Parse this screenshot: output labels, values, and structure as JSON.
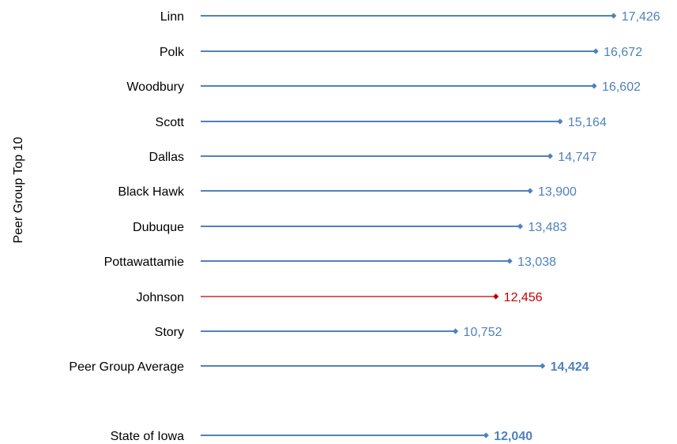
{
  "chart_data": {
    "type": "bar",
    "orientation": "horizontal",
    "style": "lollipop",
    "ylabel": "Peer Group Top 10",
    "grid": false,
    "legend": "none",
    "colors": {
      "default": "#4f81bd",
      "highlight": "#c00000"
    },
    "rows": [
      {
        "label": "Linn",
        "value": 17426,
        "value_label": "17,426",
        "highlight": false,
        "bold": false
      },
      {
        "label": "Polk",
        "value": 16672,
        "value_label": "16,672",
        "highlight": false,
        "bold": false
      },
      {
        "label": "Woodbury",
        "value": 16602,
        "value_label": "16,602",
        "highlight": false,
        "bold": false
      },
      {
        "label": "Scott",
        "value": 15164,
        "value_label": "15,164",
        "highlight": false,
        "bold": false
      },
      {
        "label": "Dallas",
        "value": 14747,
        "value_label": "14,747",
        "highlight": false,
        "bold": false
      },
      {
        "label": "Black Hawk",
        "value": 13900,
        "value_label": "13,900",
        "highlight": false,
        "bold": false
      },
      {
        "label": "Dubuque",
        "value": 13483,
        "value_label": "13,483",
        "highlight": false,
        "bold": false
      },
      {
        "label": "Pottawattamie",
        "value": 13038,
        "value_label": "13,038",
        "highlight": false,
        "bold": false
      },
      {
        "label": "Johnson",
        "value": 12456,
        "value_label": "12,456",
        "highlight": true,
        "bold": false
      },
      {
        "label": "Story",
        "value": 10752,
        "value_label": "10,752",
        "highlight": false,
        "bold": false
      },
      {
        "label": "Peer Group Average",
        "value": 14424,
        "value_label": "14,424",
        "highlight": false,
        "bold": true
      },
      {
        "label": "State of Iowa",
        "value": 12040,
        "value_label": "12,040",
        "highlight": false,
        "bold": true
      }
    ]
  }
}
